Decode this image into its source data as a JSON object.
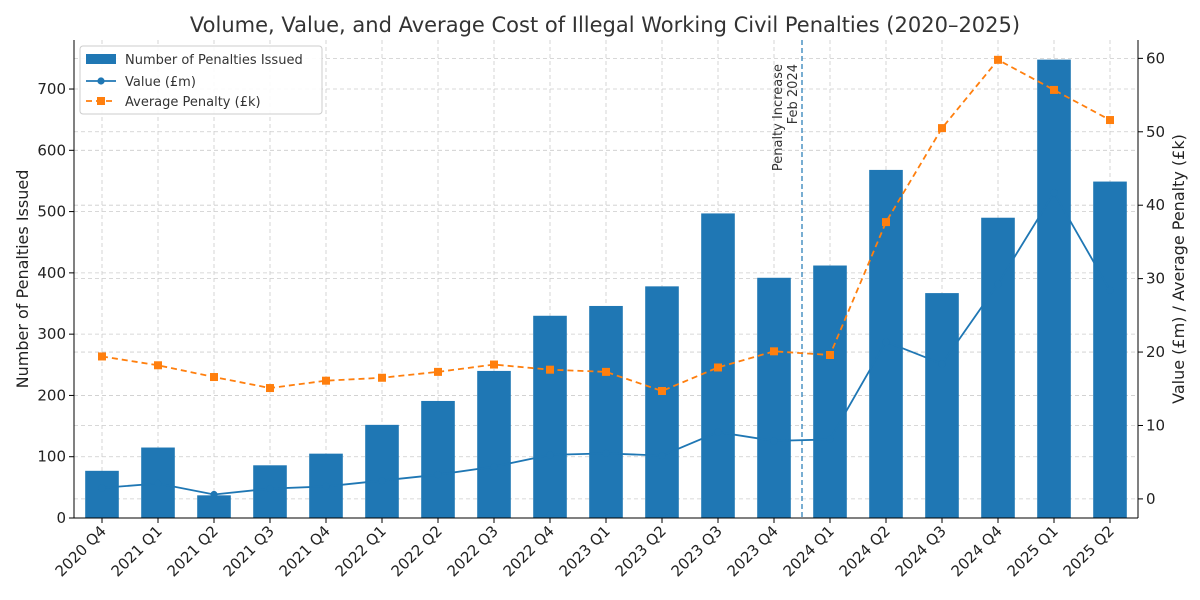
{
  "chart_data": {
    "type": "bar",
    "title": "Volume, Value, and Average Cost of Illegal Working Civil Penalties (2020–2025)",
    "xlabel": "",
    "ylabel": "Number of Penalties Issued",
    "y2label": "Value (£m) / Average Penalty (£k)",
    "categories": [
      "2020 Q4",
      "2021 Q1",
      "2021 Q2",
      "2021 Q3",
      "2021 Q4",
      "2022 Q1",
      "2022 Q2",
      "2022 Q3",
      "2022 Q4",
      "2023 Q1",
      "2023 Q2",
      "2023 Q3",
      "2023 Q4",
      "2024 Q1",
      "2024 Q2",
      "2024 Q3",
      "2024 Q4",
      "2025 Q1",
      "2025 Q2"
    ],
    "ylim": [
      0,
      780
    ],
    "y2lim": [
      -2.6,
      62.5
    ],
    "yticks": [
      0,
      100,
      200,
      300,
      400,
      500,
      600,
      700
    ],
    "y2ticks": [
      0,
      10,
      20,
      30,
      40,
      50,
      60
    ],
    "grid": true,
    "legend_position": "top-left",
    "series": [
      {
        "name": "Number of Penalties Issued",
        "kind": "bar",
        "axis": "left",
        "color": "#1f77b4",
        "values": [
          77,
          115,
          37,
          86,
          105,
          152,
          191,
          240,
          330,
          346,
          378,
          497,
          392,
          412,
          568,
          367,
          490,
          748,
          549
        ]
      },
      {
        "name": "Value (£m)",
        "kind": "line",
        "axis": "right",
        "color": "#1f77b4",
        "marker": "circle",
        "values": [
          1.5,
          2.1,
          0.6,
          1.4,
          1.7,
          2.5,
          3.3,
          4.4,
          6.0,
          6.2,
          5.9,
          9.1,
          7.9,
          8.1,
          21.4,
          18.4,
          29.3,
          41.7,
          28.4
        ]
      },
      {
        "name": "Average Penalty (£k)",
        "kind": "line",
        "axis": "right",
        "color": "#ff7f0e",
        "marker": "square",
        "dash": true,
        "values": [
          19.4,
          18.2,
          16.6,
          15.1,
          16.1,
          16.5,
          17.3,
          18.3,
          17.6,
          17.3,
          14.7,
          17.9,
          20.1,
          19.6,
          37.7,
          50.5,
          59.8,
          55.7,
          51.6
        ]
      }
    ],
    "annotation": {
      "between": [
        "2023 Q4",
        "2024 Q1"
      ],
      "lines": [
        "Penalty Increase",
        "Feb 2024"
      ]
    }
  }
}
